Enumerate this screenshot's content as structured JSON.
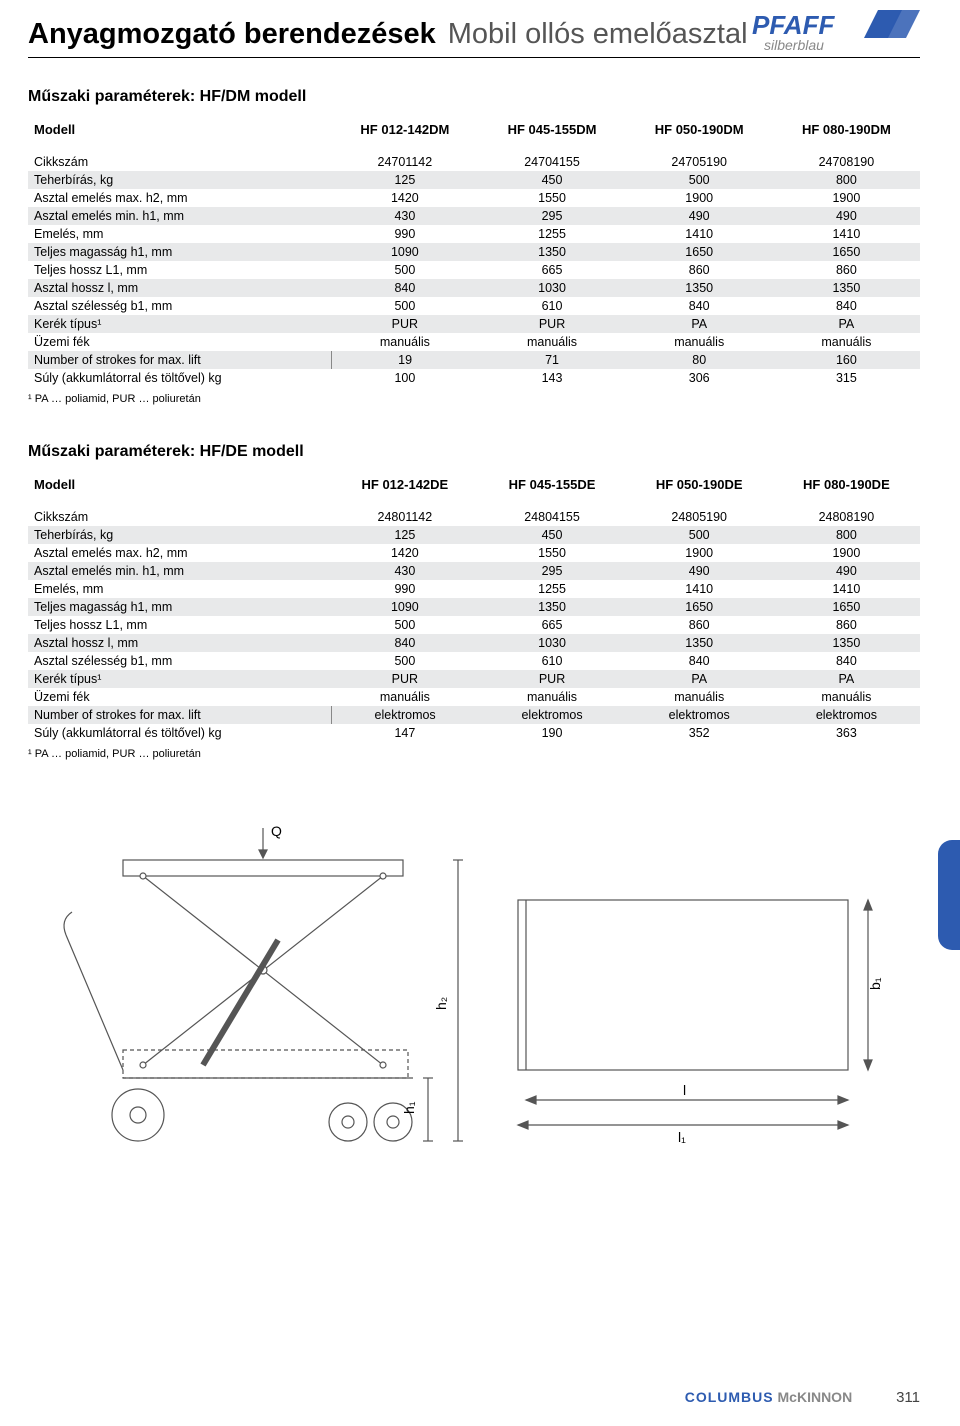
{
  "header": {
    "title_main": "Anyagmozgató berendezések",
    "title_sub": "Mobil ollós emelőasztal",
    "logo_top": "PFAFF",
    "logo_bottom": "silberblau"
  },
  "colors": {
    "shade_row": "#e8e9ea",
    "accent": "#2d5bb0",
    "logo_blue": "#2d5bb0",
    "text": "#000000",
    "gray": "#888888"
  },
  "table1": {
    "title": "Műszaki paraméterek: HF/DM modell",
    "head_label": "Modell",
    "head_cols": [
      "HF 012-142DM",
      "HF 045-155DM",
      "HF 050-190DM",
      "HF 080-190DM"
    ],
    "rows": [
      {
        "label": "Cikkszám",
        "vals": [
          "24701142",
          "24704155",
          "24705190",
          "24708190"
        ],
        "shade": false,
        "sep": false
      },
      {
        "label": "Teherbírás, kg",
        "vals": [
          "125",
          "450",
          "500",
          "800"
        ],
        "shade": true,
        "sep": false
      },
      {
        "label": "Asztal emelés max. h2, mm",
        "vals": [
          "1420",
          "1550",
          "1900",
          "1900"
        ],
        "shade": false,
        "sep": false
      },
      {
        "label": "Asztal emelés min. h1, mm",
        "vals": [
          "430",
          "295",
          "490",
          "490"
        ],
        "shade": true,
        "sep": false
      },
      {
        "label": "Emelés, mm",
        "vals": [
          "990",
          "1255",
          "1410",
          "1410"
        ],
        "shade": false,
        "sep": false
      },
      {
        "label": "Teljes magasság h1, mm",
        "vals": [
          "1090",
          "1350",
          "1650",
          "1650"
        ],
        "shade": true,
        "sep": false
      },
      {
        "label": "Teljes hossz L1, mm",
        "vals": [
          "500",
          "665",
          "860",
          "860"
        ],
        "shade": false,
        "sep": false
      },
      {
        "label": "Asztal hossz l, mm",
        "vals": [
          "840",
          "1030",
          "1350",
          "1350"
        ],
        "shade": true,
        "sep": false
      },
      {
        "label": "Asztal szélesség b1, mm",
        "vals": [
          "500",
          "610",
          "840",
          "840"
        ],
        "shade": false,
        "sep": false
      },
      {
        "label": "Kerék típus¹",
        "vals": [
          "PUR",
          "PUR",
          "PA",
          "PA"
        ],
        "shade": true,
        "sep": false
      },
      {
        "label": "Üzemi fék",
        "vals": [
          "manuális",
          "manuális",
          "manuális",
          "manuális"
        ],
        "shade": false,
        "sep": false
      },
      {
        "label": "Number of strokes for max. lift",
        "vals": [
          "19",
          "71",
          "80",
          "160"
        ],
        "shade": true,
        "sep": true
      },
      {
        "label": "Súly (akkumlátorral és töltővel) kg",
        "vals": [
          "100",
          "143",
          "306",
          "315"
        ],
        "shade": false,
        "sep": false
      }
    ],
    "footnote": "¹ PA … poliamid, PUR … poliuretán"
  },
  "table2": {
    "title": "Műszaki paraméterek: HF/DE modell",
    "head_label": "Modell",
    "head_cols": [
      "HF 012-142DE",
      "HF 045-155DE",
      "HF 050-190DE",
      "HF 080-190DE"
    ],
    "rows": [
      {
        "label": "Cikkszám",
        "vals": [
          "24801142",
          "24804155",
          "24805190",
          "24808190"
        ],
        "shade": false,
        "sep": false
      },
      {
        "label": "Teherbírás, kg",
        "vals": [
          "125",
          "450",
          "500",
          "800"
        ],
        "shade": true,
        "sep": false
      },
      {
        "label": "Asztal emelés max. h2, mm",
        "vals": [
          "1420",
          "1550",
          "1900",
          "1900"
        ],
        "shade": false,
        "sep": false
      },
      {
        "label": "Asztal emelés min. h1, mm",
        "vals": [
          "430",
          "295",
          "490",
          "490"
        ],
        "shade": true,
        "sep": false
      },
      {
        "label": "Emelés, mm",
        "vals": [
          "990",
          "1255",
          "1410",
          "1410"
        ],
        "shade": false,
        "sep": false
      },
      {
        "label": "Teljes magasság h1, mm",
        "vals": [
          "1090",
          "1350",
          "1650",
          "1650"
        ],
        "shade": true,
        "sep": false
      },
      {
        "label": "Teljes hossz L1, mm",
        "vals": [
          "500",
          "665",
          "860",
          "860"
        ],
        "shade": false,
        "sep": false
      },
      {
        "label": "Asztal hossz l, mm",
        "vals": [
          "840",
          "1030",
          "1350",
          "1350"
        ],
        "shade": true,
        "sep": false
      },
      {
        "label": "Asztal szélesség b1, mm",
        "vals": [
          "500",
          "610",
          "840",
          "840"
        ],
        "shade": false,
        "sep": false
      },
      {
        "label": "Kerék típus¹",
        "vals": [
          "PUR",
          "PUR",
          "PA",
          "PA"
        ],
        "shade": true,
        "sep": false
      },
      {
        "label": "Üzemi fék",
        "vals": [
          "manuális",
          "manuális",
          "manuális",
          "manuális"
        ],
        "shade": false,
        "sep": false
      },
      {
        "label": "Number of strokes for max. lift",
        "vals": [
          "elektromos",
          "elektromos",
          "elektromos",
          "elektromos"
        ],
        "shade": true,
        "sep": true
      },
      {
        "label": "Súly (akkumlátorral és töltővel) kg",
        "vals": [
          "147",
          "190",
          "352",
          "363"
        ],
        "shade": false,
        "sep": false
      }
    ],
    "footnote": "¹ PA … poliamid, PUR … poliuretán"
  },
  "diagram": {
    "labels": {
      "Q": "Q",
      "h1": "h₁",
      "h2": "h₂",
      "l": "l",
      "l1": "l₁",
      "b1": "b₁"
    },
    "stroke": "#555555",
    "fill": "#ffffff"
  },
  "footer": {
    "brand1": "COLUMBUS",
    "brand2": "McKINNON",
    "page": "311"
  }
}
